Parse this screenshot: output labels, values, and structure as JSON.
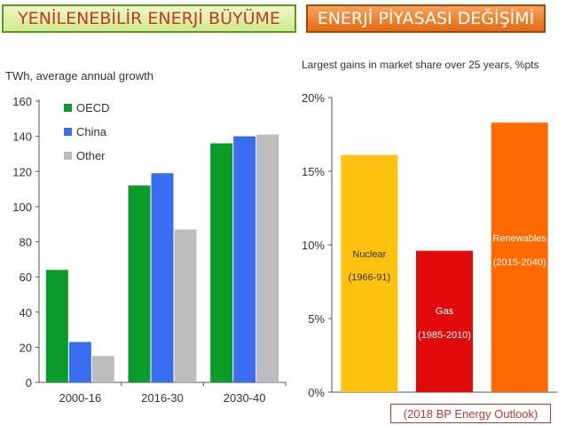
{
  "header": {
    "left_title": "YENİLENEBİLİR ENERJİ BÜYÜME",
    "right_title": "ENERJİ PİYASASI DEĞİŞİMİ"
  },
  "source_note": "(2018 BP Energy Outlook)",
  "colors": {
    "oecd": "#0a9b2a",
    "china": "#3a6cf0",
    "other": "#bdbdbd",
    "nuclear": "#ffc20e",
    "gas": "#e10a0a",
    "renewables": "#ff6a00",
    "left_title_text": "#c0392b",
    "left_title_border": "#5c9a1c",
    "right_title_bg": "#e36a12",
    "source_border": "#b03a2e"
  },
  "chart_data": [
    {
      "type": "bar",
      "title": "",
      "ylabel": "TWh, average annual growth",
      "xlabel": "",
      "categories": [
        "2000-16",
        "2016-30",
        "2030-40"
      ],
      "series": [
        {
          "name": "OECD",
          "color_key": "oecd",
          "values": [
            64,
            112,
            136
          ]
        },
        {
          "name": "China",
          "color_key": "china",
          "values": [
            23,
            119,
            140
          ]
        },
        {
          "name": "Other",
          "color_key": "other",
          "values": [
            15,
            87,
            141
          ]
        }
      ],
      "ylim": [
        0,
        160
      ],
      "yticks": [
        "0",
        "20",
        "40",
        "60",
        "80",
        "100",
        "120",
        "140",
        "160"
      ],
      "legend": "top-left",
      "grid": false
    },
    {
      "type": "bar",
      "title": "Largest gains in market share over 25 years, %pts",
      "ylabel": "",
      "xlabel": "",
      "categories": [
        "Nuclear",
        "Gas",
        "Renewables"
      ],
      "bar_labels": [
        {
          "name": "Nuclear",
          "period": "(1966-91)"
        },
        {
          "name": "Gas",
          "period": "(1985-2010)"
        },
        {
          "name": "Renewables",
          "period": "(2015-2040)"
        }
      ],
      "values": [
        16.1,
        9.6,
        18.3
      ],
      "color_keys": [
        "nuclear",
        "gas",
        "renewables"
      ],
      "ylim": [
        0,
        20
      ],
      "yticks": [
        "0%",
        "5%",
        "10%",
        "15%",
        "20%"
      ],
      "grid": false
    }
  ]
}
